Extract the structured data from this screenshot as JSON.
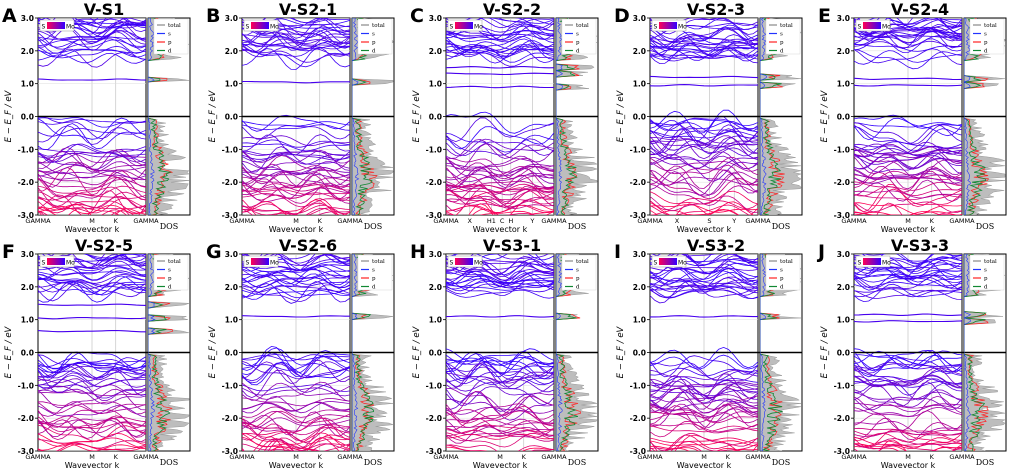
{
  "figure": {
    "ylabel": "E − E_F / eV",
    "xlabel": "Wavevector k",
    "dos_label": "DOS",
    "colorbar_left": "S",
    "colorbar_right": "Mo",
    "legend": [
      "total",
      "s",
      "p",
      "d"
    ],
    "colors": {
      "total": "#888888",
      "s": "#2233ff",
      "p": "#ff2222",
      "d": "#118833",
      "band_low": "#ff0055",
      "band_high": "#3300ff"
    }
  },
  "chart_data": [
    {
      "type": "line",
      "panel": "A",
      "title": "V-S1",
      "ylim": [
        -3.0,
        3.0
      ],
      "yticks": [
        "3.0",
        "2.0",
        "1.0",
        "0.0",
        "-1.0",
        "-2.0",
        "-3.0"
      ],
      "kpath": [
        "GAMMA",
        "M",
        "K",
        "GAMMA"
      ],
      "kpos": [
        0,
        0.5,
        0.72,
        1
      ],
      "gap_levels": [
        1.12
      ],
      "fermi_level": 0.0,
      "ylabel": "E − E_F / eV",
      "xlabel": "Wavevector k"
    },
    {
      "type": "line",
      "panel": "B",
      "title": "V-S2-1",
      "ylim": [
        -3.0,
        3.0
      ],
      "yticks": [
        "3.0",
        "2.0",
        "1.0",
        "0.0",
        "-1.0",
        "-2.0",
        "-3.0"
      ],
      "kpath": [
        "GAMMA",
        "M",
        "K",
        "GAMMA"
      ],
      "kpos": [
        0,
        0.5,
        0.72,
        1
      ],
      "gap_levels": [
        1.05
      ],
      "fermi_level": 0.0,
      "ylabel": "E − E_F / eV",
      "xlabel": "Wavevector k"
    },
    {
      "type": "line",
      "panel": "C",
      "title": "V-S2-2",
      "ylim": [
        -3.0,
        3.0
      ],
      "yticks": [
        "3.0",
        "2.0",
        "1.0",
        "0.0",
        "-1.0",
        "-2.0",
        "-3.0"
      ],
      "kpath": [
        "GAMMA",
        "X",
        "H1",
        "C",
        "H",
        "Y",
        "GAMMA"
      ],
      "kpos": [
        0,
        0.22,
        0.42,
        0.52,
        0.6,
        0.8,
        1
      ],
      "gap_levels": [
        0.9,
        1.3,
        1.5
      ],
      "fermi_level": 0.0,
      "ylabel": "E − E_F / eV",
      "xlabel": "Wavevector k"
    },
    {
      "type": "line",
      "panel": "D",
      "title": "V-S2-3",
      "ylim": [
        -3.0,
        3.0
      ],
      "yticks": [
        "3.0",
        "2.0",
        "1.0",
        "0.0",
        "-1.0",
        "-2.0",
        "-3.0"
      ],
      "kpath": [
        "GAMMA",
        "X",
        "S",
        "Y",
        "GAMMA"
      ],
      "kpos": [
        0,
        0.25,
        0.55,
        0.78,
        1
      ],
      "gap_levels": [
        0.95,
        1.2
      ],
      "fermi_level": 0.0,
      "ylabel": "E − E_F / eV",
      "xlabel": "Wavevector k"
    },
    {
      "type": "line",
      "panel": "E",
      "title": "V-S2-4",
      "ylim": [
        -3.0,
        3.0
      ],
      "yticks": [
        "3.0",
        "2.0",
        "1.0",
        "0.0",
        "-1.0",
        "-2.0",
        "-3.0"
      ],
      "kpath": [
        "GAMMA",
        "M",
        "K",
        "GAMMA"
      ],
      "kpos": [
        0,
        0.5,
        0.72,
        1
      ],
      "gap_levels": [
        0.95,
        1.15
      ],
      "fermi_level": 0.0,
      "ylabel": "E − E_F / eV",
      "xlabel": "Wavevector k"
    },
    {
      "type": "line",
      "panel": "F",
      "title": "V-S2-5",
      "ylim": [
        -3.0,
        3.0
      ],
      "yticks": [
        "3.0",
        "2.0",
        "1.0",
        "0.0",
        "-1.0",
        "-2.0",
        "-3.0"
      ],
      "kpath": [
        "GAMMA",
        "M",
        "K",
        "GAMMA"
      ],
      "kpos": [
        0,
        0.5,
        0.72,
        1
      ],
      "gap_levels": [
        0.65,
        1.05,
        1.45
      ],
      "fermi_level": 0.0,
      "ylabel": "E − E_F / eV",
      "xlabel": "Wavevector k"
    },
    {
      "type": "line",
      "panel": "G",
      "title": "V-S2-6",
      "ylim": [
        -3.0,
        3.0
      ],
      "yticks": [
        "3.0",
        "2.0",
        "1.0",
        "0.0",
        "-1.0",
        "-2.0",
        "-3.0"
      ],
      "kpath": [
        "GAMMA",
        "M",
        "K",
        "GAMMA"
      ],
      "kpos": [
        0,
        0.5,
        0.72,
        1
      ],
      "gap_levels": [
        1.1
      ],
      "fermi_level": 0.0,
      "ylabel": "E − E_F / eV",
      "xlabel": "Wavevector k"
    },
    {
      "type": "line",
      "panel": "H",
      "title": "V-S3-1",
      "ylim": [
        -3.0,
        3.0
      ],
      "yticks": [
        "3.0",
        "2.0",
        "1.0",
        "0.0",
        "-1.0",
        "-2.0",
        "-3.0"
      ],
      "kpath": [
        "GAMMA",
        "M",
        "K",
        "GAMMA"
      ],
      "kpos": [
        0,
        0.5,
        0.72,
        1
      ],
      "gap_levels": [
        1.1
      ],
      "fermi_level": 0.0,
      "ylabel": "E − E_F / eV",
      "xlabel": "Wavevector k"
    },
    {
      "type": "line",
      "panel": "I",
      "title": "V-S3-2",
      "ylim": [
        -3.0,
        3.0
      ],
      "yticks": [
        "3.0",
        "2.0",
        "1.0",
        "0.0",
        "-1.0",
        "-2.0",
        "-3.0"
      ],
      "kpath": [
        "GAMMA",
        "M",
        "K",
        "GAMMA"
      ],
      "kpos": [
        0,
        0.5,
        0.72,
        1
      ],
      "gap_levels": [
        1.1
      ],
      "fermi_level": 0.0,
      "ylabel": "E − E_F / eV",
      "xlabel": "Wavevector k"
    },
    {
      "type": "line",
      "panel": "J",
      "title": "V-S3-3",
      "ylim": [
        -3.0,
        3.0
      ],
      "yticks": [
        "3.0",
        "2.0",
        "1.0",
        "0.0",
        "-1.0",
        "-2.0",
        "-3.0"
      ],
      "kpath": [
        "GAMMA",
        "M",
        "K",
        "GAMMA"
      ],
      "kpos": [
        0,
        0.5,
        0.72,
        1
      ],
      "gap_levels": [
        0.95,
        1.15
      ],
      "fermi_level": 0.0,
      "ylabel": "E − E_F / eV",
      "xlabel": "Wavevector k"
    }
  ]
}
